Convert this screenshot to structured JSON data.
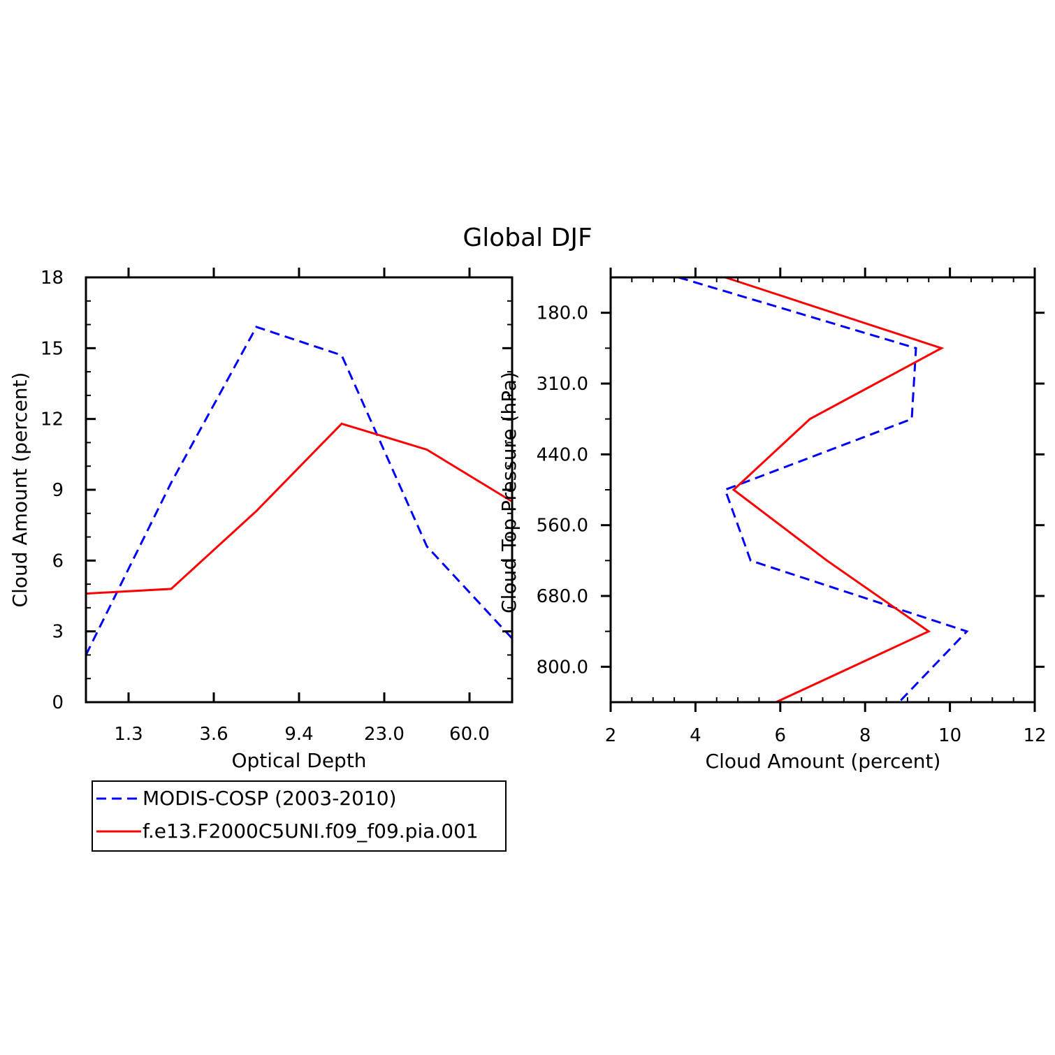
{
  "title": "Global DJF",
  "colors": {
    "obs": "#0000ff",
    "model": "#ff0000",
    "axis": "#000000"
  },
  "legend": {
    "entries": [
      {
        "label": "MODIS-COSP (2003-2010)",
        "color": "#0000ff",
        "dash": true
      },
      {
        "label": "f.e13.F2000C5UNI.f09_f09.pia.001",
        "color": "#ff0000",
        "dash": false
      }
    ]
  },
  "chart_data": [
    {
      "type": "line",
      "xlabel": "Optical Depth",
      "ylabel": "Cloud Amount (percent)",
      "x_tick_labels": [
        "1.3",
        "3.6",
        "9.4",
        "23.0",
        "60.0"
      ],
      "x_tick_positions": [
        1,
        2,
        3,
        4,
        5
      ],
      "xlim": [
        0.5,
        5.5
      ],
      "ylim": [
        0,
        18
      ],
      "y_ticks": [
        0,
        3,
        6,
        9,
        12,
        15,
        18
      ],
      "x": [
        0.5,
        1.5,
        2.5,
        3.5,
        4.5,
        5.5
      ],
      "series": [
        {
          "name": "MODIS-COSP (2003-2010)",
          "values": [
            2.0,
            9.3,
            15.9,
            14.7,
            6.6,
            2.7
          ]
        },
        {
          "name": "f.e13.F2000C5UNI.f09_f09.pia.001",
          "values": [
            4.6,
            4.8,
            8.1,
            11.8,
            10.7,
            8.5
          ]
        }
      ]
    },
    {
      "type": "line",
      "orientation": "horizontal",
      "xlabel": "Cloud Amount (percent)",
      "ylabel": "Cloud Top Pressure (hPa)",
      "xlim": [
        2,
        12
      ],
      "x_ticks": [
        2,
        4,
        6,
        8,
        10,
        12
      ],
      "y_tick_labels": [
        "180.0",
        "310.0",
        "440.0",
        "560.0",
        "680.0",
        "800.0"
      ],
      "y_tick_positions": [
        1,
        2,
        3,
        4,
        5,
        6
      ],
      "ylim": [
        0.5,
        6.5
      ],
      "levels": [
        0.5,
        1.5,
        2.5,
        3.5,
        4.5,
        5.5,
        6.5
      ],
      "series": [
        {
          "name": "MODIS-COSP (2003-2010)",
          "values": [
            3.6,
            9.2,
            9.1,
            4.7,
            5.3,
            10.4,
            8.8
          ]
        },
        {
          "name": "f.e13.F2000C5UNI.f09_f09.pia.001",
          "values": [
            4.7,
            9.8,
            6.7,
            4.9,
            7.1,
            9.5,
            5.9
          ]
        }
      ]
    }
  ]
}
